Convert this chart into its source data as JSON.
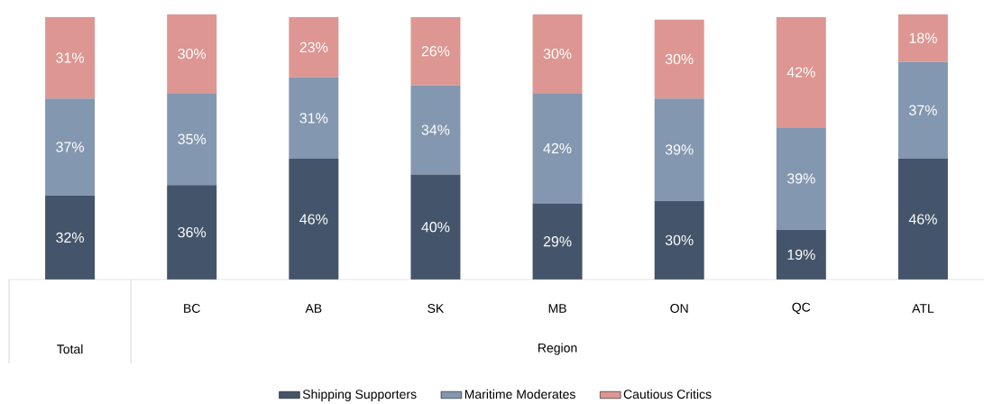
{
  "chart_data": {
    "type": "bar",
    "stacked": true,
    "annotations": [
      "Total"
    ],
    "categories": [
      null,
      "BC",
      "AB",
      "SK",
      "MB",
      "ON",
      "QC",
      "ATL"
    ],
    "xlabel": "Region",
    "legend": "bottom",
    "series": [
      {
        "name": "Shipping Supporters",
        "color": "#44546a",
        "values": [
          32,
          36,
          46,
          40,
          29,
          30,
          19,
          46
        ],
        "value_labels": [
          "32%",
          "36%",
          "46%",
          "40%",
          "29%",
          "30%",
          "19%",
          "46%"
        ]
      },
      {
        "name": "Maritime Moderates",
        "color": "#8497b0",
        "values": [
          37,
          35,
          31,
          34,
          42,
          39,
          39,
          37
        ],
        "value_labels": [
          "37%",
          "35%",
          "31%",
          "34%",
          "42%",
          "39%",
          "39%",
          "37%"
        ]
      },
      {
        "name": "Cautious Critics",
        "color": "#dd9692",
        "values": [
          31,
          30,
          23,
          26,
          30,
          30,
          42,
          18
        ],
        "value_labels": [
          "31%",
          "30%",
          "23%",
          "26%",
          "30%",
          "30%",
          "42%",
          "18%"
        ]
      }
    ]
  }
}
